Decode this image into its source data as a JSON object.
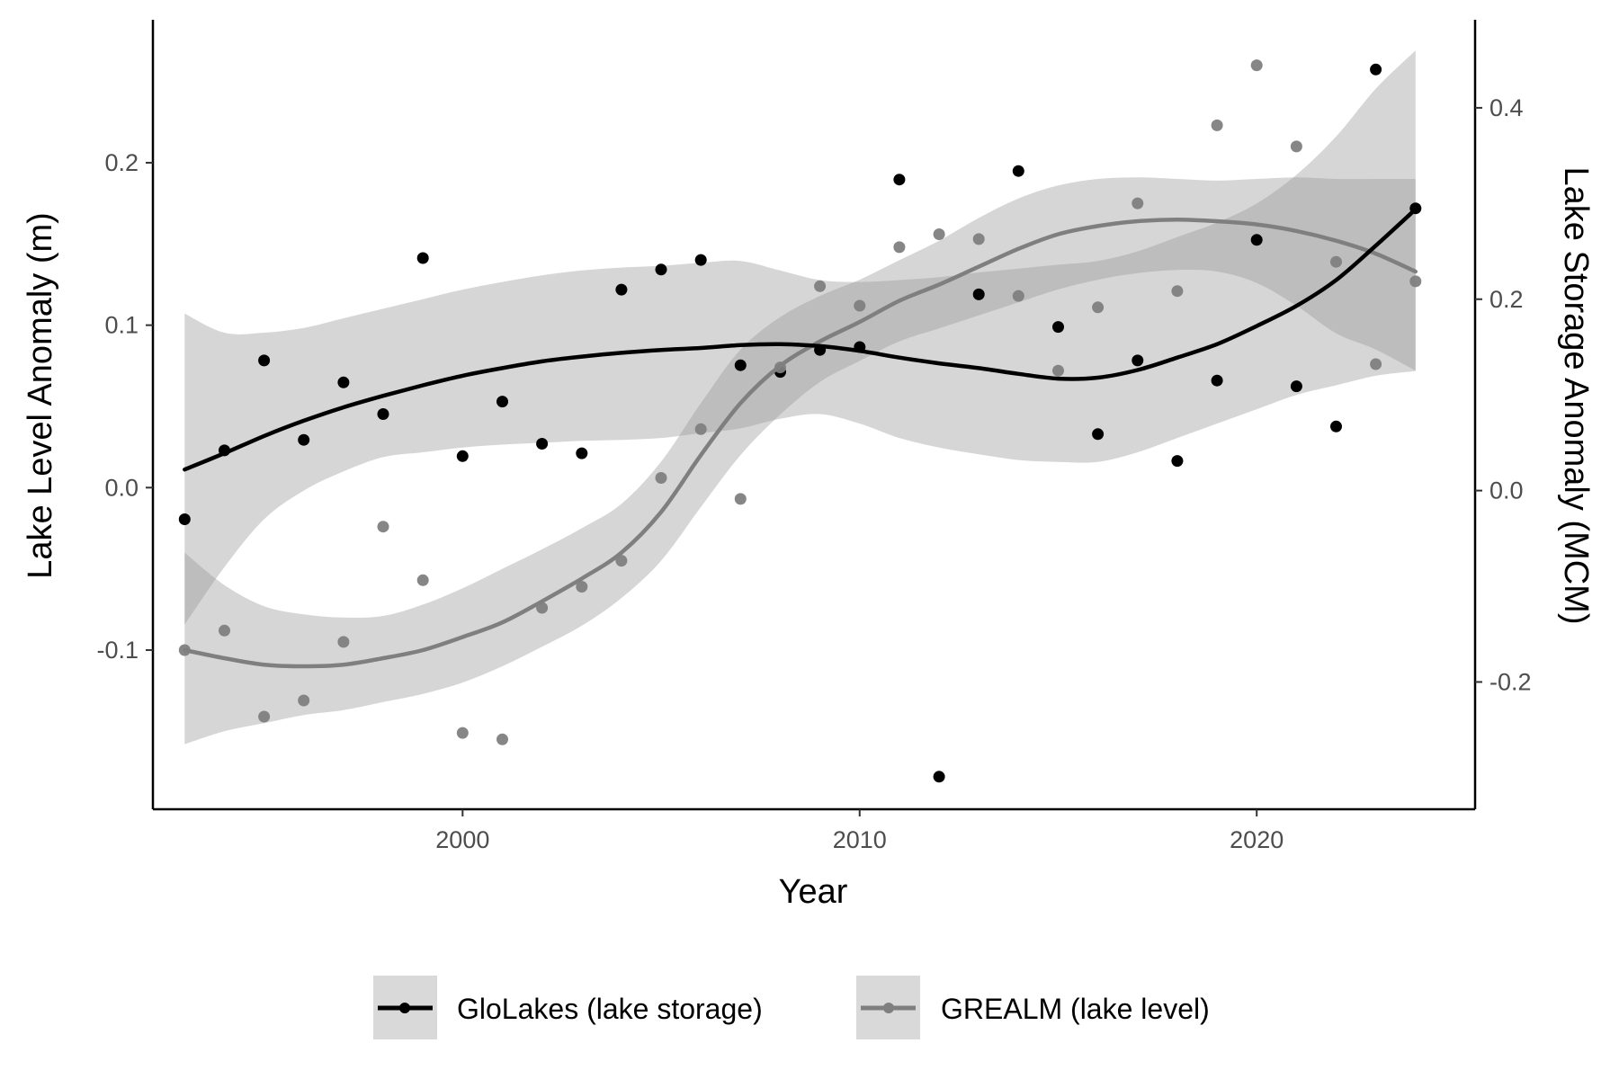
{
  "chart_data": {
    "type": "scatter",
    "xlabel": "Year",
    "ylabel": "Lake Level Anomaly (m)",
    "y2label": "Lake Storage Anomaly (MCM)",
    "xlim": [
      1992.2,
      2025.5
    ],
    "ylim": [
      -0.198,
      0.288
    ],
    "y2lim": [
      -0.333,
      0.492
    ],
    "x_ticks": [
      2000,
      2010,
      2020
    ],
    "x_tick_labels": [
      "2000",
      "2010",
      "2020"
    ],
    "y_ticks": [
      -0.1,
      0.0,
      0.1,
      0.2
    ],
    "y_tick_labels": [
      "-0.1",
      "0.0",
      "0.1",
      "0.2"
    ],
    "y2_ticks": [
      -0.2,
      0.0,
      0.2,
      0.4
    ],
    "y2_tick_labels": [
      "-0.2",
      "0.0",
      "0.2",
      "0.4"
    ],
    "grid": false,
    "legend_position": "bottom",
    "series": [
      {
        "name": "GloLakes (lake storage)",
        "axis": "right",
        "color": "#000000",
        "x": [
          1993,
          1994,
          1995,
          1996,
          1997,
          1998,
          1999,
          2000,
          2001,
          2002,
          2003,
          2004,
          2005,
          2006,
          2007,
          2008,
          2009,
          2010,
          2011,
          2012,
          2013,
          2014,
          2015,
          2016,
          2017,
          2018,
          2019,
          2020,
          2021,
          2022,
          2023,
          2024
        ],
        "y": [
          -0.03,
          0.042,
          0.136,
          0.053,
          0.113,
          0.08,
          0.243,
          0.036,
          0.093,
          0.049,
          0.039,
          0.21,
          0.231,
          0.241,
          0.131,
          0.124,
          0.147,
          0.15,
          0.325,
          -0.299,
          0.205,
          0.334,
          0.171,
          0.059,
          0.136,
          0.031,
          0.115,
          0.262,
          0.109,
          0.067,
          0.44,
          0.295
        ],
        "smooth_x": [
          1993,
          1994,
          1995,
          1996,
          1997,
          1998,
          1999,
          2000,
          2001,
          2002,
          2003,
          2004,
          2005,
          2006,
          2007,
          2008,
          2009,
          2010,
          2011,
          2012,
          2013,
          2014,
          2015,
          2016,
          2017,
          2018,
          2019,
          2020,
          2021,
          2022,
          2023,
          2024
        ],
        "smooth_y": [
          0.022,
          0.039,
          0.057,
          0.073,
          0.087,
          0.099,
          0.11,
          0.12,
          0.128,
          0.135,
          0.14,
          0.144,
          0.147,
          0.149,
          0.152,
          0.153,
          0.151,
          0.146,
          0.139,
          0.133,
          0.128,
          0.122,
          0.117,
          0.118,
          0.126,
          0.139,
          0.153,
          0.172,
          0.193,
          0.22,
          0.256,
          0.294
        ],
        "ci_low": [
          -0.14,
          -0.08,
          -0.03,
          0.0,
          0.02,
          0.035,
          0.04,
          0.045,
          0.048,
          0.05,
          0.052,
          0.053,
          0.055,
          0.06,
          0.065,
          0.075,
          0.08,
          0.07,
          0.055,
          0.045,
          0.038,
          0.032,
          0.03,
          0.03,
          0.04,
          0.055,
          0.07,
          0.085,
          0.1,
          0.11,
          0.12,
          0.125
        ],
        "ci_high": [
          0.185,
          0.165,
          0.165,
          0.17,
          0.18,
          0.19,
          0.2,
          0.21,
          0.218,
          0.225,
          0.23,
          0.233,
          0.235,
          0.238,
          0.24,
          0.23,
          0.22,
          0.218,
          0.22,
          0.223,
          0.228,
          0.232,
          0.236,
          0.24,
          0.25,
          0.265,
          0.28,
          0.3,
          0.33,
          0.37,
          0.42,
          0.46
        ]
      },
      {
        "name": "GREALM (lake level)",
        "axis": "left",
        "color": "#7f7f7f",
        "x": [
          1993,
          1994,
          1995,
          1996,
          1997,
          1998,
          1999,
          2000,
          2001,
          2002,
          2003,
          2004,
          2005,
          2006,
          2007,
          2008,
          2009,
          2010,
          2011,
          2012,
          2013,
          2014,
          2015,
          2016,
          2017,
          2018,
          2019,
          2020,
          2021,
          2022,
          2023,
          2024
        ],
        "y": [
          -0.1,
          -0.088,
          -0.141,
          -0.131,
          -0.095,
          -0.024,
          -0.057,
          -0.151,
          -0.155,
          -0.074,
          -0.061,
          -0.045,
          0.006,
          0.036,
          -0.007,
          0.074,
          0.124,
          0.112,
          0.148,
          0.156,
          0.153,
          0.118,
          0.072,
          0.111,
          0.175,
          0.121,
          0.223,
          0.26,
          0.21,
          0.139,
          0.076,
          0.127
        ],
        "smooth_x": [
          1993,
          1994,
          1995,
          1996,
          1997,
          1998,
          1999,
          2000,
          2001,
          2002,
          2003,
          2004,
          2005,
          2006,
          2007,
          2008,
          2009,
          2010,
          2011,
          2012,
          2013,
          2014,
          2015,
          2016,
          2017,
          2018,
          2019,
          2020,
          2021,
          2022,
          2023,
          2024
        ],
        "smooth_y": [
          -0.1,
          -0.105,
          -0.109,
          -0.11,
          -0.109,
          -0.105,
          -0.1,
          -0.092,
          -0.083,
          -0.07,
          -0.056,
          -0.04,
          -0.015,
          0.02,
          0.052,
          0.075,
          0.09,
          0.102,
          0.115,
          0.125,
          0.136,
          0.147,
          0.156,
          0.161,
          0.164,
          0.165,
          0.164,
          0.162,
          0.158,
          0.152,
          0.144,
          0.133
        ],
        "ci_low": [
          -0.158,
          -0.15,
          -0.145,
          -0.14,
          -0.137,
          -0.132,
          -0.127,
          -0.12,
          -0.11,
          -0.098,
          -0.085,
          -0.068,
          -0.045,
          -0.012,
          0.02,
          0.045,
          0.065,
          0.078,
          0.09,
          0.098,
          0.106,
          0.114,
          0.122,
          0.128,
          0.132,
          0.134,
          0.133,
          0.126,
          0.112,
          0.095,
          0.085,
          0.072
        ],
        "ci_high": [
          -0.04,
          -0.06,
          -0.073,
          -0.078,
          -0.08,
          -0.079,
          -0.072,
          -0.062,
          -0.05,
          -0.038,
          -0.025,
          -0.01,
          0.016,
          0.052,
          0.085,
          0.105,
          0.118,
          0.128,
          0.14,
          0.152,
          0.166,
          0.178,
          0.186,
          0.19,
          0.191,
          0.19,
          0.189,
          0.19,
          0.191,
          0.19,
          0.19,
          0.19
        ]
      }
    ]
  }
}
